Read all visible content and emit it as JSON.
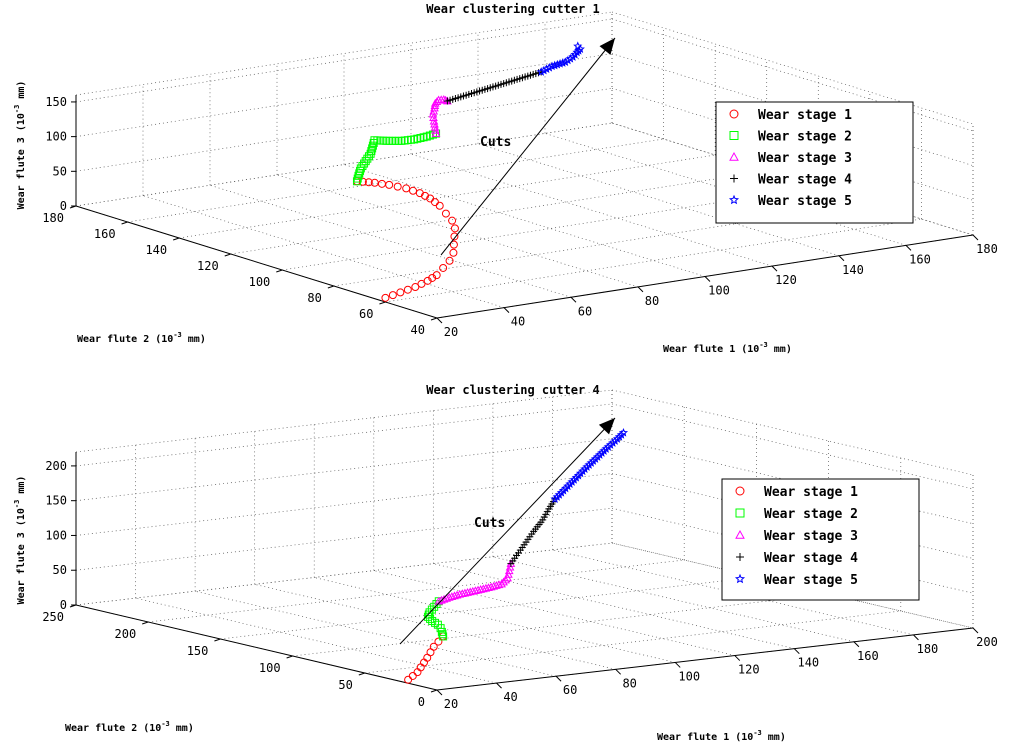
{
  "chart_data": [
    {
      "type": "scatter",
      "title": "Wear clustering cutter 1",
      "xlabel": "Wear flute 1 (10^-3 mm)",
      "ylabel": "Wear flute 2 (10^-3 mm)",
      "zlabel": "Wear flute 3 (10^-3 mm)",
      "xlim": [
        20,
        180
      ],
      "ylim": [
        40,
        180
      ],
      "zlim": [
        0,
        160
      ],
      "xticks": [
        "20",
        "40",
        "60",
        "80",
        "100",
        "120",
        "140",
        "160",
        "180"
      ],
      "yticks": [
        "40",
        "60",
        "80",
        "100",
        "120",
        "140",
        "160",
        "180"
      ],
      "zticks": [
        "0",
        "50",
        "100",
        "150"
      ],
      "grid": true,
      "legend_position": "right",
      "annotation": "Cuts",
      "series": [
        {
          "name": "Wear stage 1",
          "marker": "circle",
          "color": "#ff0000",
          "points": [
            [
              20,
              60,
              6
            ],
            [
              26,
              62,
              7
            ],
            [
              32,
              64,
              8
            ],
            [
              38,
              67,
              9
            ],
            [
              43,
              70,
              10
            ],
            [
              48,
              74,
              12
            ],
            [
              53,
              78,
              14
            ],
            [
              58,
              83,
              16
            ],
            [
              62,
              88,
              19
            ],
            [
              66,
              93,
              22
            ],
            [
              70,
              98,
              25
            ],
            [
              73,
              103,
              28
            ],
            [
              75,
              108,
              31
            ],
            [
              77,
              113,
              35
            ],
            [
              78,
              118,
              39
            ],
            [
              78,
              122,
              42
            ],
            [
              77,
              126,
              45
            ],
            [
              75,
              130,
              47
            ],
            [
              73,
              133,
              48
            ],
            [
              70,
              136,
              49
            ]
          ]
        },
        {
          "name": "Wear stage 2",
          "marker": "square",
          "color": "#00ff00",
          "points": [
            [
              70,
              136,
              49
            ],
            [
              72,
              138,
              53
            ],
            [
              75,
              141,
              58
            ],
            [
              78,
              143,
              64
            ],
            [
              81,
              145,
              70
            ],
            [
              84,
              148,
              76
            ],
            [
              86,
              150,
              80
            ],
            [
              88,
              148,
              80
            ],
            [
              91,
              146,
              80
            ],
            [
              94,
              145,
              81
            ],
            [
              97,
              144,
              84
            ],
            [
              99,
              143,
              88
            ]
          ]
        },
        {
          "name": "Wear stage 3",
          "marker": "triangle",
          "color": "#ff00ff",
          "points": [
            [
              99,
              143,
              88
            ],
            [
              101,
              146,
              92
            ],
            [
              103,
              149,
              96
            ],
            [
              105,
              152,
              101
            ],
            [
              107,
              154,
              106
            ],
            [
              108,
              155,
              111
            ],
            [
              109,
              155,
              115
            ],
            [
              109,
              153,
              118
            ],
            [
              108,
              151,
              120
            ],
            [
              107,
              149,
              122
            ]
          ]
        },
        {
          "name": "Wear stage 4",
          "marker": "plus",
          "color": "#000000",
          "points": [
            [
              107,
              149,
              122
            ],
            [
              111,
              149,
              125
            ],
            [
              115,
              149,
              128
            ],
            [
              119,
              149,
              131
            ],
            [
              123,
              149,
              134
            ],
            [
              127,
              149,
              137
            ],
            [
              131,
              149,
              140
            ],
            [
              135,
              149,
              143
            ]
          ]
        },
        {
          "name": "Wear stage 5",
          "marker": "star",
          "color": "#0000ff",
          "points": [
            [
              135,
              149,
              143
            ],
            [
              139,
              150,
              147
            ],
            [
              143,
              150,
              150
            ],
            [
              146,
              151,
              154
            ],
            [
              148,
              152,
              158
            ],
            [
              149,
              152,
              162
            ],
            [
              149,
              153,
              165
            ]
          ]
        }
      ]
    },
    {
      "type": "scatter",
      "title": "Wear clustering cutter 4",
      "xlabel": "Wear flute 1 (10^-3 mm)",
      "ylabel": "Wear flute 2 (10^-3 mm)",
      "zlabel": "Wear flute 3 (10^-3 mm)",
      "xlim": [
        20,
        200
      ],
      "ylim": [
        0,
        250
      ],
      "zlim": [
        0,
        220
      ],
      "xticks": [
        "20",
        "40",
        "60",
        "80",
        "100",
        "120",
        "140",
        "160",
        "180",
        "200"
      ],
      "yticks": [
        "0",
        "50",
        "100",
        "150",
        "200",
        "250"
      ],
      "zticks": [
        "0",
        "50",
        "100",
        "150",
        "200"
      ],
      "grid": true,
      "legend_position": "right",
      "annotation": "Cuts",
      "series": [
        {
          "name": "Wear stage 1",
          "marker": "circle",
          "color": "#ff0000",
          "points": [
            [
              20,
              20,
              5
            ],
            [
              24,
              25,
              6
            ],
            [
              28,
              30,
              7
            ],
            [
              32,
              36,
              9
            ],
            [
              36,
              42,
              11
            ],
            [
              40,
              48,
              13
            ],
            [
              44,
              54,
              16
            ],
            [
              48,
              60,
              19
            ],
            [
              52,
              65,
              22
            ],
            [
              56,
              70,
              25
            ]
          ]
        },
        {
          "name": "Wear stage 2",
          "marker": "square",
          "color": "#00ff00",
          "points": [
            [
              56,
              70,
              25
            ],
            [
              58,
              75,
              28
            ],
            [
              60,
              80,
              30
            ],
            [
              62,
              86,
              31
            ],
            [
              63,
              92,
              33
            ],
            [
              64,
              97,
              36
            ],
            [
              66,
              100,
              40
            ],
            [
              69,
              103,
              45
            ],
            [
              72,
              106,
              50
            ]
          ]
        },
        {
          "name": "Wear stage 3",
          "marker": "triangle",
          "color": "#ff00ff",
          "points": [
            [
              72,
              106,
              50
            ],
            [
              76,
              107,
              53
            ],
            [
              80,
              108,
              55
            ],
            [
              84,
              109,
              56
            ],
            [
              88,
              110,
              57
            ],
            [
              92,
              111,
              58
            ],
            [
              96,
              112,
              60
            ],
            [
              99,
              114,
              66
            ],
            [
              101,
              117,
              74
            ],
            [
              103,
              120,
              82
            ]
          ]
        },
        {
          "name": "Wear stage 4",
          "marker": "plus",
          "color": "#000000",
          "points": [
            [
              103,
              120,
              82
            ],
            [
              107,
              123,
              94
            ],
            [
              111,
              126,
              106
            ],
            [
              115,
              129,
              118
            ],
            [
              120,
              133,
              130
            ],
            [
              124,
              137,
              142
            ],
            [
              128,
              141,
              152
            ]
          ]
        },
        {
          "name": "Wear stage 5",
          "marker": "star",
          "color": "#0000ff",
          "points": [
            [
              128,
              141,
              152
            ],
            [
              134,
              146,
              162
            ],
            [
              140,
              151,
              172
            ],
            [
              146,
              156,
              182
            ],
            [
              152,
              161,
              191
            ],
            [
              158,
              166,
              200
            ],
            [
              163,
              170,
              207
            ],
            [
              167,
              174,
              212
            ]
          ]
        }
      ]
    }
  ]
}
